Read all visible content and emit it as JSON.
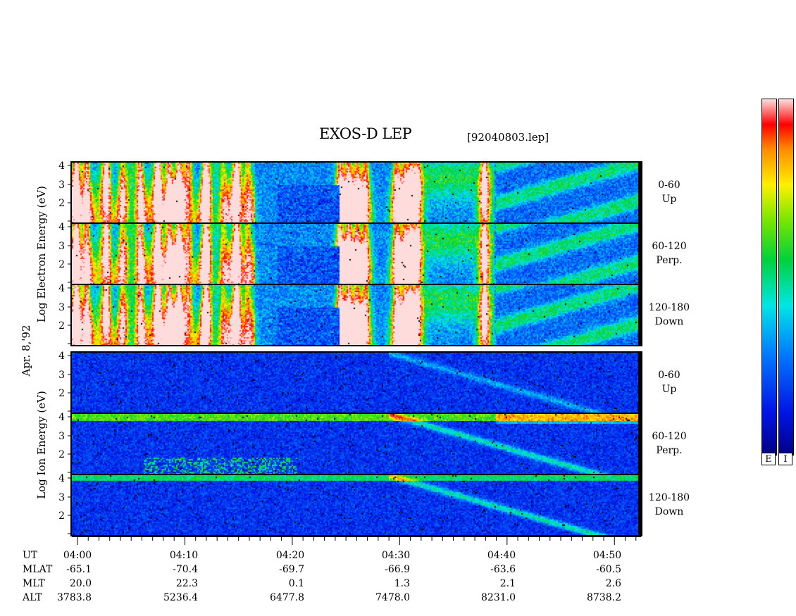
{
  "title": "EXOS-D LEP",
  "filename": "[92040803.lep]",
  "date_label": "Apr. 8,'92",
  "electron_axis_label": "Log Electron Energy (eV)",
  "ion_axis_label": "Log Ion Energy (eV)",
  "colorbar_letters": [
    "E",
    "I"
  ],
  "chart_data": {
    "type": "heatmap",
    "x_axis": {
      "range_minutes": [
        0,
        53
      ],
      "tick_labels": [
        "04:00",
        "04:10",
        "04:20",
        "04:30",
        "04:40",
        "04:50"
      ]
    },
    "y_ticks": [
      "4",
      "3",
      "2"
    ],
    "panels": [
      {
        "species": "electron",
        "angle": "0-60",
        "direction": "Up"
      },
      {
        "species": "electron",
        "angle": "60-120",
        "direction": "Perp."
      },
      {
        "species": "electron",
        "angle": "120-180",
        "direction": "Down"
      },
      {
        "species": "ion",
        "angle": "0-60",
        "direction": "Up"
      },
      {
        "species": "ion",
        "angle": "60-120",
        "direction": "Perp."
      },
      {
        "species": "ion",
        "angle": "120-180",
        "direction": "Down"
      }
    ],
    "ephemeris": {
      "rows": [
        {
          "name": "UT",
          "values": [
            "04:00",
            "04:10",
            "04:20",
            "04:30",
            "04:40",
            "04:50"
          ]
        },
        {
          "name": "MLAT",
          "values": [
            "-65.1",
            "-70.4",
            "-69.7",
            "-66.9",
            "-63.6",
            "-60.5"
          ]
        },
        {
          "name": "MLT",
          "values": [
            "20.0",
            "22.3",
            "0.1",
            "1.3",
            "2.1",
            "2.6"
          ]
        },
        {
          "name": "ALT",
          "values": [
            "3783.8",
            "5236.4",
            "6477.8",
            "7478.0",
            "8231.0",
            "8738.2"
          ]
        }
      ]
    }
  }
}
